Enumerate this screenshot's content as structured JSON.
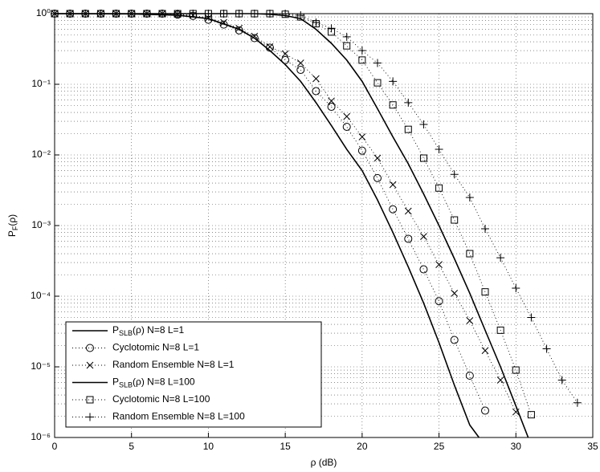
{
  "chart_data": {
    "type": "line",
    "xlabel": "ρ (dB)",
    "ylabel": "PF(ρ)",
    "xlim": [
      0,
      35
    ],
    "ylim": [
      1e-06,
      1
    ],
    "log_y": true,
    "grid": true,
    "legend": "lower left",
    "xticks": [
      0,
      5,
      10,
      15,
      20,
      25,
      30,
      35
    ],
    "yticks": [
      {
        "value": 1,
        "label": "10⁰"
      },
      {
        "value": 0.1,
        "label": "10⁻¹"
      },
      {
        "value": 0.01,
        "label": "10⁻²"
      },
      {
        "value": 0.001,
        "label": "10⁻³"
      },
      {
        "value": 0.0001,
        "label": "10⁻⁴"
      },
      {
        "value": 1e-05,
        "label": "10⁻⁵"
      },
      {
        "value": 1e-06,
        "label": "10⁻⁶"
      }
    ],
    "series": [
      {
        "name": "PSLB(ρ) N=8 L=1",
        "color": "#000000",
        "linestyle": "solid",
        "marker": "none",
        "x": [
          0,
          5,
          8,
          10,
          12,
          13,
          14,
          15,
          16,
          17,
          18,
          19,
          20,
          21,
          22,
          23,
          24,
          25,
          26,
          27,
          27.6
        ],
        "values": [
          1,
          0.99,
          0.95,
          0.85,
          0.6,
          0.45,
          0.3,
          0.19,
          0.11,
          0.055,
          0.026,
          0.012,
          0.006,
          0.0023,
          0.0008,
          0.00026,
          8e-05,
          2.2e-05,
          5.5e-06,
          1.5e-06,
          1e-06
        ]
      },
      {
        "name": "Cyclotomic N=8 L=1",
        "color": "#000000",
        "linestyle": "dotted",
        "marker": "o",
        "x": [
          0,
          1,
          2,
          3,
          4,
          5,
          6,
          7,
          8,
          9,
          10,
          11,
          12,
          13,
          14,
          15,
          16,
          17,
          18,
          19,
          20,
          21,
          22,
          23,
          24,
          25,
          26,
          27,
          28
        ],
        "values": [
          1,
          1,
          1,
          1,
          1,
          1,
          1,
          1,
          0.97,
          0.93,
          0.82,
          0.7,
          0.58,
          0.45,
          0.33,
          0.22,
          0.16,
          0.08,
          0.048,
          0.025,
          0.0115,
          0.0047,
          0.0017,
          0.00065,
          0.00024,
          8.5e-05,
          2.4e-05,
          7.5e-06,
          2.4e-06
        ]
      },
      {
        "name": "Random Ensemble N=8 L=1",
        "color": "#000000",
        "linestyle": "dotted",
        "marker": "x",
        "x": [
          0,
          1,
          2,
          3,
          4,
          5,
          6,
          7,
          8,
          9,
          10,
          11,
          12,
          13,
          14,
          15,
          16,
          17,
          18,
          19,
          20,
          21,
          22,
          23,
          24,
          25,
          26,
          27,
          28,
          29,
          30
        ],
        "values": [
          1,
          1,
          1,
          1,
          1,
          1,
          1,
          1,
          0.98,
          0.95,
          0.87,
          0.75,
          0.62,
          0.48,
          0.34,
          0.27,
          0.2,
          0.12,
          0.058,
          0.035,
          0.018,
          0.009,
          0.0038,
          0.0016,
          0.0007,
          0.00028,
          0.00011,
          4.5e-05,
          1.7e-05,
          6.5e-06,
          2.3e-06
        ]
      },
      {
        "name": "PSLB(ρ) N=8 L=100",
        "color": "#000000",
        "linestyle": "solid",
        "marker": "none",
        "x": [
          0,
          5,
          10,
          13,
          14,
          15,
          16,
          17,
          18,
          19,
          20,
          21,
          22,
          23,
          24,
          25,
          26,
          27,
          28,
          29,
          30,
          30.8
        ],
        "values": [
          1,
          1,
          1,
          1,
          0.98,
          0.94,
          0.85,
          0.6,
          0.38,
          0.22,
          0.11,
          0.045,
          0.018,
          0.0075,
          0.0028,
          0.001,
          0.00034,
          0.00011,
          3.3e-05,
          1e-05,
          2.8e-06,
          1e-06
        ]
      },
      {
        "name": "Cyclotomic N=8 L=100",
        "color": "#000000",
        "linestyle": "dotted",
        "marker": "s",
        "x": [
          0,
          1,
          2,
          3,
          4,
          5,
          6,
          7,
          8,
          9,
          10,
          11,
          12,
          13,
          14,
          15,
          16,
          17,
          18,
          19,
          20,
          21,
          22,
          23,
          24,
          25,
          26,
          27,
          28,
          29,
          30,
          31
        ],
        "values": [
          1,
          1,
          1,
          1,
          1,
          1,
          1,
          1,
          1,
          1,
          1,
          1,
          1,
          1,
          1,
          0.98,
          0.9,
          0.72,
          0.55,
          0.35,
          0.22,
          0.105,
          0.051,
          0.023,
          0.009,
          0.0034,
          0.0012,
          0.0004,
          0.000115,
          3.3e-05,
          9e-06,
          2.1e-06
        ]
      },
      {
        "name": "Random Ensemble N=8 L=100",
        "color": "#000000",
        "linestyle": "dotted",
        "marker": "+",
        "x": [
          0,
          1,
          2,
          3,
          4,
          5,
          6,
          7,
          8,
          9,
          10,
          11,
          12,
          13,
          14,
          15,
          16,
          17,
          18,
          19,
          20,
          21,
          22,
          23,
          24,
          25,
          26,
          27,
          28,
          29,
          30,
          31,
          32,
          33,
          34
        ],
        "values": [
          1,
          1,
          1,
          1,
          1,
          1,
          1,
          1,
          1,
          1,
          1,
          1,
          1,
          1,
          1,
          1,
          0.95,
          0.75,
          0.62,
          0.47,
          0.3,
          0.2,
          0.11,
          0.055,
          0.027,
          0.012,
          0.0053,
          0.0025,
          0.0009,
          0.00035,
          0.00013,
          5e-05,
          1.8e-05,
          6.5e-06,
          3.1e-06
        ]
      }
    ]
  }
}
